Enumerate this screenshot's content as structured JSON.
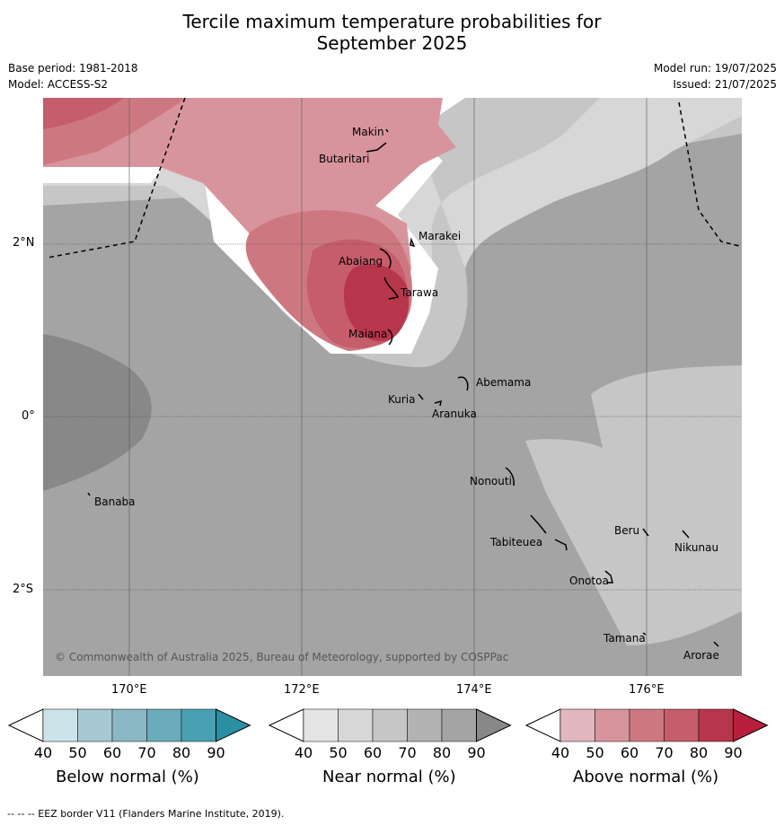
{
  "title_line1": "Tercile maximum temperature probabilities for",
  "title_line2": "September 2025",
  "base_period": "Base period: 1981-2018",
  "model": "Model: ACCESS-S2",
  "model_run": "Model run: 19/07/2025",
  "issued": "Issued: 21/07/2025",
  "lat_labels": [
    "2°N",
    "0°",
    "2°S"
  ],
  "lon_labels": [
    "170°E",
    "172°E",
    "174°E",
    "176°E"
  ],
  "copyright": "© Commonwealth of Australia 2025, Bureau of Meteorology, supported by COSPPac",
  "places": [
    "Makin",
    "Butaritari",
    "Marakei",
    "Abaiang",
    "Tarawa",
    "Maiana",
    "Abemama",
    "Kuria",
    "Aranuka",
    "Banaba",
    "Nonouti",
    "Tabiteuea",
    "Beru",
    "Nikunau",
    "Onotoa",
    "Tamana",
    "Arorae"
  ],
  "colorbars": [
    {
      "label": "Below normal (%)",
      "ticks": [
        "40",
        "50",
        "60",
        "70",
        "80",
        "90"
      ],
      "colors": [
        "#ffffff",
        "#cce3ea",
        "#a7c9d1",
        "#8ab8c4",
        "#6aacbb",
        "#48a1b3",
        "#2a8fa3"
      ]
    },
    {
      "label": "Near normal (%)",
      "ticks": [
        "40",
        "50",
        "60",
        "70",
        "80",
        "90"
      ],
      "colors": [
        "#ffffff",
        "#e4e4e4",
        "#d7d7d7",
        "#c6c6c6",
        "#b3b3b3",
        "#a4a4a4",
        "#888888"
      ]
    },
    {
      "label": "Above normal (%)",
      "ticks": [
        "40",
        "50",
        "60",
        "70",
        "80",
        "90"
      ],
      "colors": [
        "#ffffff",
        "#e2b7be",
        "#d8949c",
        "#cd7880",
        "#c55d6b",
        "#b8364c",
        "#b81e3e"
      ]
    }
  ],
  "footer": "--  --  -- EEZ border V11 (Flanders Marine Institute, 2019)."
}
